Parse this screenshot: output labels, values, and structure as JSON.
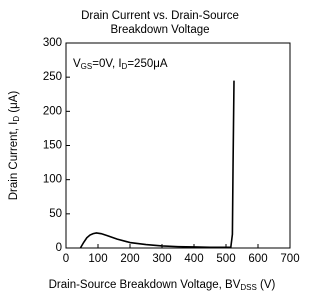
{
  "chart_data": {
    "type": "line",
    "title": [
      "Drain Current vs. Drain-Source",
      "Breakdown Voltage"
    ],
    "annotation": [
      {
        "text": "V"
      },
      {
        "text": "GS",
        "sub": true
      },
      {
        "text": "=0V, I"
      },
      {
        "text": "D",
        "sub": true
      },
      {
        "text": "=250μA"
      }
    ],
    "x_label": [
      {
        "text": "Drain-Source Breakdown Voltage, BV"
      },
      {
        "text": "DSS",
        "sub": true
      },
      {
        "text": " (V)"
      }
    ],
    "y_label": [
      {
        "text": "Drain Current, I"
      },
      {
        "text": "D",
        "sub": true
      },
      {
        "text": " (μA)"
      }
    ],
    "x": [
      45,
      55,
      65,
      75,
      85,
      95,
      110,
      130,
      160,
      200,
      250,
      300,
      350,
      400,
      450,
      500,
      515,
      520,
      522,
      525
    ],
    "values": [
      0,
      8,
      15,
      19,
      21,
      22,
      21,
      18,
      13,
      8,
      5,
      3,
      2,
      1.5,
      1,
      1,
      1,
      20,
      120,
      245
    ],
    "color": "#000000",
    "xlim": [
      0,
      700
    ],
    "xticks": [
      0,
      100,
      200,
      300,
      400,
      500,
      600,
      700
    ],
    "ylim": [
      0,
      300
    ],
    "yticks": [
      0,
      50,
      100,
      150,
      200,
      250,
      300
    ],
    "grid": false
  }
}
